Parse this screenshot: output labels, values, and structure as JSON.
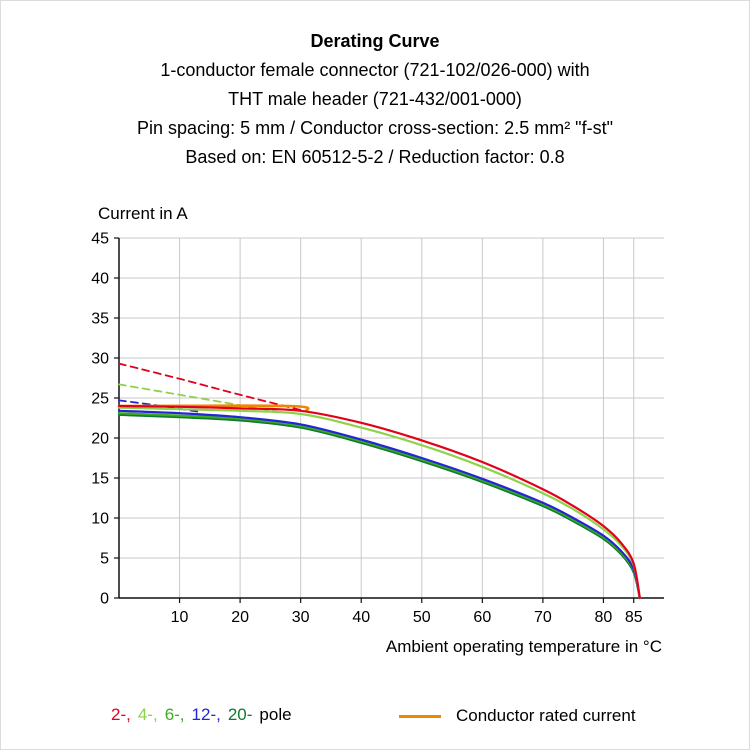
{
  "header": {
    "title": "Derating Curve",
    "lines": [
      "1-conductor female connector (721-102/026-000) with",
      "THT male header (721-432/001-000)",
      "Pin spacing: 5 mm / Conductor cross-section: 2.5 mm² \"f-st\"",
      "Based on: EN 60512-5-2 / Reduction factor: 0.8"
    ]
  },
  "legend": {
    "pole_items": [
      {
        "label": "2-,",
        "color": "#e2001a"
      },
      {
        "label": "4-,",
        "color": "#8fd24a"
      },
      {
        "label": "6-,",
        "color": "#3cab1f"
      },
      {
        "label": "12-,",
        "color": "#2525d8"
      },
      {
        "label": "20-",
        "color": "#0f7a2e"
      }
    ],
    "pole_suffix": "pole",
    "rated_label": "Conductor rated current",
    "rated_color": "#ef8700"
  },
  "chart_data": {
    "type": "line",
    "title": "Derating Curve",
    "xlabel": "Ambient operating temperature in °C",
    "ylabel": "Current in A",
    "xlim": [
      0,
      90
    ],
    "ylim": [
      0,
      45
    ],
    "xticks": [
      10,
      20,
      30,
      40,
      50,
      60,
      70,
      80,
      85
    ],
    "yticks": [
      0,
      5,
      10,
      15,
      20,
      25,
      30,
      35,
      40,
      45
    ],
    "grid": true,
    "grid_color": "#c9c9c9",
    "axis_color": "#111111",
    "legend_position": "bottom",
    "series": [
      {
        "name": "12-pole-dashed",
        "color": "#2525d8",
        "dash": true,
        "width": 1.8,
        "x": [
          0,
          7,
          13
        ],
        "y": [
          24.7,
          24.0,
          23.3
        ]
      },
      {
        "name": "4-pole-dashed",
        "color": "#8fd24a",
        "dash": true,
        "width": 1.8,
        "x": [
          0,
          10,
          20,
          26
        ],
        "y": [
          26.7,
          25.4,
          24.1,
          23.3
        ]
      },
      {
        "name": "2-pole-dashed",
        "color": "#e2001a",
        "dash": true,
        "width": 1.8,
        "x": [
          0,
          10,
          20,
          30
        ],
        "y": [
          29.3,
          27.4,
          25.4,
          23.5
        ]
      },
      {
        "name": "20-pole",
        "color": "#0f7a2e",
        "dash": false,
        "width": 2.2,
        "x": [
          0,
          10,
          20,
          30,
          40,
          50,
          60,
          70,
          75,
          80,
          83,
          85,
          86
        ],
        "y": [
          22.9,
          22.6,
          22.2,
          21.3,
          19.4,
          17.1,
          14.5,
          11.5,
          9.6,
          7.4,
          5.4,
          3.2,
          0
        ]
      },
      {
        "name": "6-pole",
        "color": "#3cab1f",
        "dash": false,
        "width": 2.2,
        "x": [
          0,
          10,
          20,
          30,
          40,
          50,
          60,
          70,
          75,
          80,
          83,
          85,
          86
        ],
        "y": [
          23.1,
          22.8,
          22.4,
          21.5,
          19.6,
          17.3,
          14.7,
          11.7,
          9.8,
          7.6,
          5.6,
          3.4,
          0
        ]
      },
      {
        "name": "12-pole",
        "color": "#2525d8",
        "dash": false,
        "width": 2.2,
        "x": [
          0,
          10,
          20,
          30,
          40,
          50,
          60,
          70,
          75,
          80,
          83,
          85,
          86
        ],
        "y": [
          23.4,
          23.1,
          22.6,
          21.7,
          19.8,
          17.5,
          14.9,
          11.9,
          10.0,
          7.8,
          5.8,
          3.6,
          0
        ]
      },
      {
        "name": "4-pole",
        "color": "#8fd24a",
        "dash": false,
        "width": 2.2,
        "x": [
          0,
          10,
          20,
          30,
          40,
          50,
          60,
          70,
          75,
          80,
          83,
          85,
          86
        ],
        "y": [
          23.8,
          23.6,
          23.4,
          23.0,
          21.3,
          19.1,
          16.4,
          13.1,
          11.1,
          8.6,
          6.5,
          4.1,
          0
        ]
      },
      {
        "name": "conductor-rated-current",
        "color": "#ef8700",
        "dash": false,
        "width": 2.6,
        "x": [
          0,
          28,
          31
        ],
        "y": [
          24.0,
          24.0,
          23.4
        ]
      },
      {
        "name": "2-pole",
        "color": "#e2001a",
        "dash": false,
        "width": 2.2,
        "x": [
          0,
          10,
          20,
          30,
          40,
          50,
          60,
          70,
          75,
          80,
          83,
          85,
          86
        ],
        "y": [
          24.0,
          23.9,
          23.7,
          23.4,
          21.9,
          19.7,
          17.0,
          13.6,
          11.5,
          9.0,
          6.8,
          4.3,
          0
        ]
      }
    ]
  }
}
